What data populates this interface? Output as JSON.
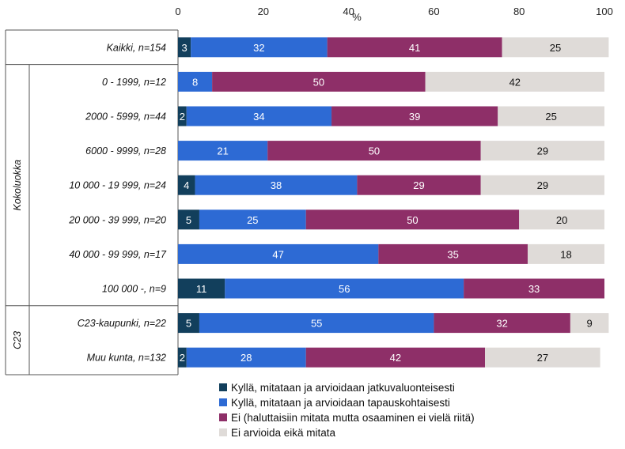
{
  "chart_data": {
    "type": "bar",
    "orientation": "horizontal",
    "stacked": true,
    "xlabel": "%",
    "xlim": [
      0,
      100
    ],
    "xticks": [
      "0",
      "20",
      "40",
      "60",
      "80",
      "100"
    ],
    "grid": false,
    "legend_position": "bottom",
    "categories": [
      "Kaikki, n=154",
      "0 - 1999, n=12",
      "2000 - 5999, n=44",
      "6000 - 9999, n=28",
      "10 000 - 19 999, n=24",
      "20 000 - 39 999, n=20",
      "40 000 - 99 999, n=17",
      "100 000 -, n=9",
      "C23-kaupunki, n=22",
      "Muu kunta, n=132"
    ],
    "groups": [
      {
        "label": "Kokoluokka",
        "from": 1,
        "to": 7
      },
      {
        "label": "C23",
        "from": 8,
        "to": 9
      }
    ],
    "series": [
      {
        "name": "Kyllä, mitataan ja arvioidaan jatkuvaluonteisesti",
        "color": "#123f5c",
        "label_color": "#ffffff",
        "values": [
          3,
          0,
          2,
          0,
          4,
          5,
          0,
          11,
          5,
          2
        ]
      },
      {
        "name": "Kyllä, mitataan ja arvioidaan tapauskohtaisesti",
        "color": "#2d6ad4",
        "label_color": "#ffffff",
        "values": [
          32,
          8,
          34,
          21,
          38,
          25,
          47,
          56,
          55,
          28
        ]
      },
      {
        "name": "Ei (haluttaisiin mitata mutta osaaminen ei vielä riitä)",
        "color": "#8e2f68",
        "label_color": "#ffffff",
        "values": [
          41,
          50,
          39,
          50,
          29,
          50,
          35,
          33,
          32,
          42
        ]
      },
      {
        "name": "Ei arvioida eikä mitata",
        "color": "#dfdbd8",
        "label_color": "#111111",
        "values": [
          25,
          42,
          25,
          29,
          29,
          20,
          18,
          0,
          9,
          27
        ]
      }
    ]
  }
}
